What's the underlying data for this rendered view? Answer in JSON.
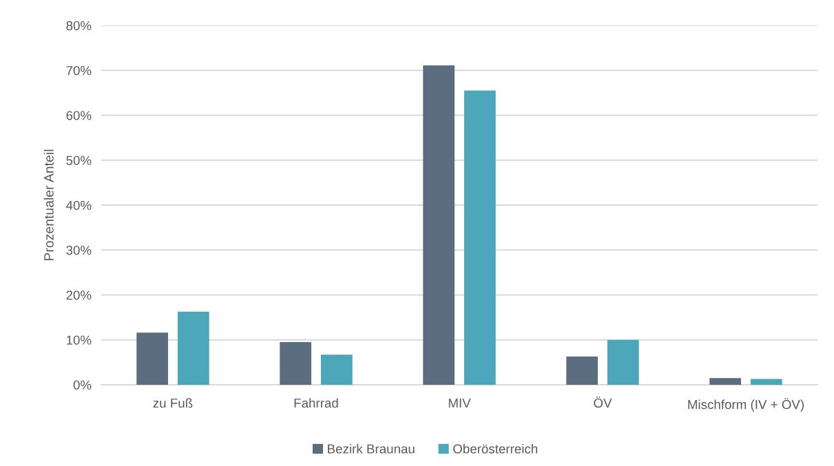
{
  "chart_data": {
    "type": "bar",
    "ylabel": "Prozentualer Anteil",
    "categories": [
      "zu Fuß",
      "Fahrrad",
      "MIV",
      "ÖV",
      "Mischform (IV + ÖV)"
    ],
    "series": [
      {
        "name": "Bezirk Braunau",
        "color": "#5a6e7f",
        "values": [
          11.6,
          9.5,
          71.1,
          6.3,
          1.5
        ]
      },
      {
        "name": "Oberösterreich",
        "color": "#4ba7b9",
        "values": [
          16.3,
          6.7,
          65.5,
          10.0,
          1.3
        ]
      }
    ],
    "ylim": [
      0,
      80
    ],
    "yticks": [
      {
        "value": 0,
        "label": "0%"
      },
      {
        "value": 10,
        "label": "10%"
      },
      {
        "value": 20,
        "label": "20%"
      },
      {
        "value": 30,
        "label": "30%"
      },
      {
        "value": 40,
        "label": "40%"
      },
      {
        "value": 50,
        "label": "50%"
      },
      {
        "value": 60,
        "label": "60%"
      },
      {
        "value": 70,
        "label": "70%"
      },
      {
        "value": 80,
        "label": "80%"
      }
    ],
    "grid": "y",
    "legend": "bottom"
  }
}
